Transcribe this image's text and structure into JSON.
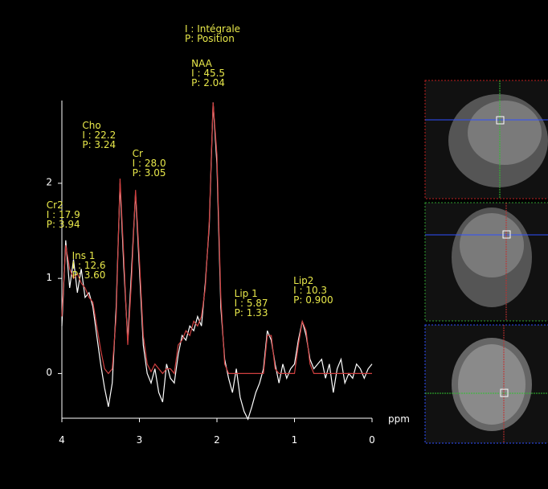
{
  "chart_data": {
    "type": "line",
    "legend_lines": [
      "I : Intégrale",
      "P: Position"
    ],
    "x_label": "ppm",
    "xlim": [
      4,
      0
    ],
    "xticks": [
      4,
      3,
      2,
      1,
      0
    ],
    "ylim": [
      -0.47,
      2.87
    ],
    "yticks": [
      0,
      1,
      2
    ],
    "x": [
      4,
      3.95,
      3.9,
      3.85,
      3.8,
      3.75,
      3.7,
      3.65,
      3.6,
      3.55,
      3.5,
      3.45,
      3.4,
      3.35,
      3.3,
      3.25,
      3.2,
      3.15,
      3.1,
      3.05,
      3,
      2.95,
      2.9,
      2.85,
      2.8,
      2.75,
      2.7,
      2.65,
      2.6,
      2.55,
      2.5,
      2.45,
      2.4,
      2.35,
      2.3,
      2.25,
      2.2,
      2.15,
      2.1,
      2.05,
      2,
      1.95,
      1.9,
      1.85,
      1.8,
      1.75,
      1.7,
      1.65,
      1.6,
      1.55,
      1.5,
      1.45,
      1.4,
      1.35,
      1.3,
      1.25,
      1.2,
      1.15,
      1.1,
      1.05,
      1,
      0.95,
      0.9,
      0.85,
      0.8,
      0.75,
      0.7,
      0.65,
      0.6,
      0.55,
      0.5,
      0.45,
      0.4,
      0.35,
      0.3,
      0.25,
      0.2,
      0.15,
      0.1,
      0.05,
      0
    ],
    "series": [
      {
        "color": "#ffffff",
        "values": [
          0.5,
          1.4,
          0.9,
          1.2,
          0.85,
          1.1,
          0.8,
          0.85,
          0.7,
          0.4,
          0.1,
          -0.15,
          -0.35,
          -0.1,
          0.7,
          2.0,
          1.1,
          0.35,
          1.1,
          1.9,
          1.1,
          0.3,
          0,
          -0.1,
          0.05,
          -0.2,
          -0.3,
          0.1,
          -0.05,
          -0.1,
          0.2,
          0.4,
          0.35,
          0.5,
          0.45,
          0.6,
          0.5,
          0.95,
          1.55,
          2.85,
          2.2,
          0.7,
          0.15,
          -0.05,
          -0.2,
          0.05,
          -0.25,
          -0.4,
          -0.48,
          -0.35,
          -0.2,
          -0.1,
          0.05,
          0.45,
          0.35,
          0.1,
          -0.1,
          0.1,
          -0.05,
          0.05,
          0.1,
          0.35,
          0.55,
          0.4,
          0.15,
          0.05,
          0.1,
          0.15,
          -0.05,
          0.1,
          -0.2,
          0.05,
          0.15,
          -0.1,
          0,
          -0.05,
          0.1,
          0.05,
          -0.05,
          0.05,
          0.1
        ]
      },
      {
        "color": "#d04040",
        "values": [
          0.6,
          1.35,
          1.1,
          1.0,
          1.05,
          0.95,
          0.9,
          0.8,
          0.75,
          0.5,
          0.25,
          0.05,
          0,
          0.05,
          0.6,
          2.05,
          1.2,
          0.3,
          1.0,
          1.93,
          1.2,
          0.4,
          0.1,
          0.02,
          0.1,
          0.05,
          0,
          0.05,
          0.05,
          0,
          0.3,
          0.35,
          0.45,
          0.4,
          0.55,
          0.5,
          0.6,
          0.9,
          1.6,
          2.85,
          2.3,
          0.8,
          0.1,
          0,
          0,
          0,
          0,
          0,
          0,
          0,
          0,
          0,
          0,
          0.4,
          0.4,
          0.05,
          0,
          0,
          0,
          0,
          0,
          0.3,
          0.55,
          0.45,
          0.1,
          0,
          0,
          0,
          0,
          0,
          0,
          0,
          0,
          0,
          0,
          0,
          0,
          0,
          0,
          0,
          0
        ]
      }
    ],
    "peaks": [
      {
        "name": "NAA",
        "integral_label": "I : 45.5",
        "position": 2.04,
        "position_label": "P: 2.04"
      },
      {
        "name": "Cho",
        "integral_label": "I : 22.2",
        "position": 3.24,
        "position_label": "P: 3.24"
      },
      {
        "name": "Cr",
        "integral_label": "I : 28.0",
        "position": 3.05,
        "position_label": "P: 3.05"
      },
      {
        "name": "Cr2",
        "integral_label": "I : 17.9",
        "position": 3.94,
        "position_label": "P: 3.94"
      },
      {
        "name": "Ins 1",
        "integral_label": "I : 12.6",
        "position": 3.6,
        "position_label": "P: 3.60"
      },
      {
        "name": "Lip 1",
        "integral_label": "I : 5.87",
        "position": 1.33,
        "position_label": "P: 1.33"
      },
      {
        "name": "Lip2",
        "integral_label": "I : 10.3",
        "position": 0.9,
        "position_label": "P: 0.900"
      }
    ]
  }
}
